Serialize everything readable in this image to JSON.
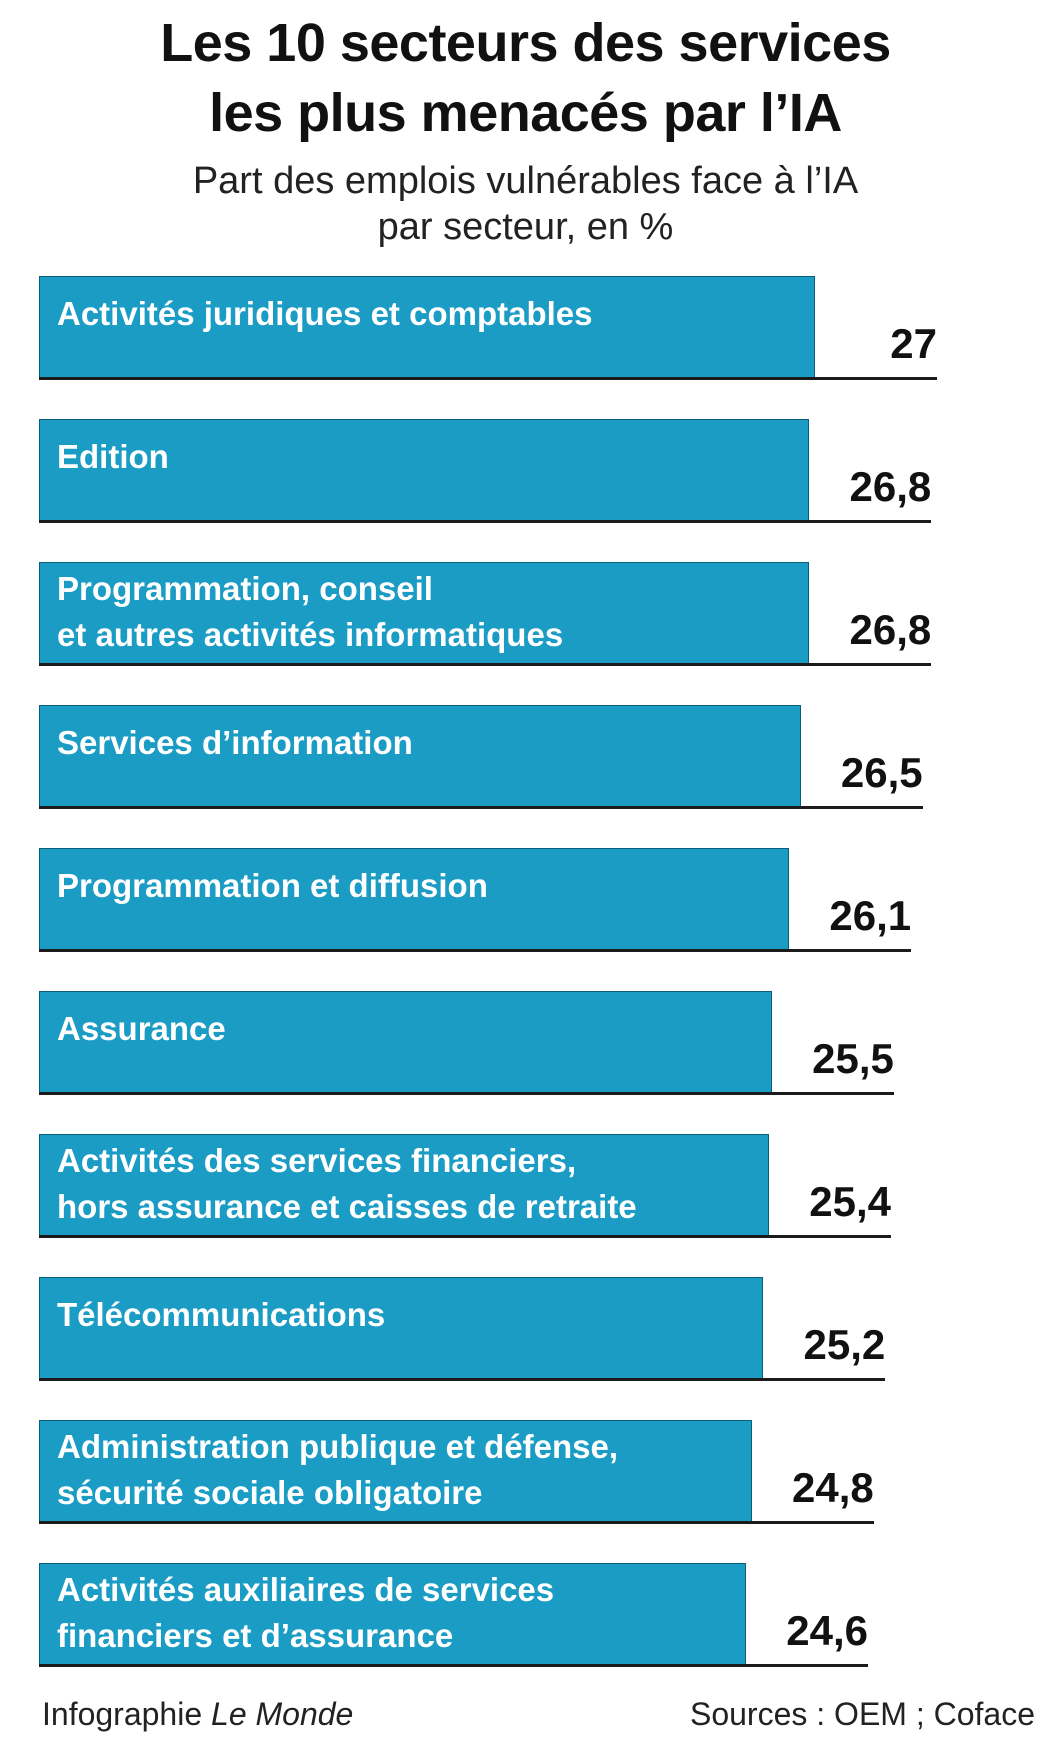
{
  "chart_data": {
    "type": "bar",
    "orientation": "horizontal",
    "title": "Les 10 secteurs des services\nles plus menacés par l’IA",
    "subtitle": "Part des emplois vulnérables face à l’IA\npar secteur, en %",
    "categories": [
      "Activités juridiques et comptables",
      "Edition",
      "Programmation, conseil\net autres activités informatiques",
      "Services d’information",
      "Programmation et diffusion",
      "Assurance",
      "Activités des services financiers,\nhors assurance et caisses de retraite",
      "Télécommunications",
      "Administration publique et défense,\nsécurité sociale obligatoire",
      "Activités auxiliaires de services\nfinanciers et d’assurance"
    ],
    "values": [
      27,
      26.8,
      26.8,
      26.5,
      26.1,
      25.5,
      25.4,
      25.2,
      24.8,
      24.6
    ],
    "value_labels": [
      "27",
      "26,8",
      "26,8",
      "26,5",
      "26,1",
      "25,5",
      "25,4",
      "25,2",
      "24,8",
      "24,6"
    ],
    "color": "#1a9cc4",
    "credit": "Infographie",
    "credit_publication": "Le Monde",
    "source": "Sources : OEM ; Coface"
  }
}
